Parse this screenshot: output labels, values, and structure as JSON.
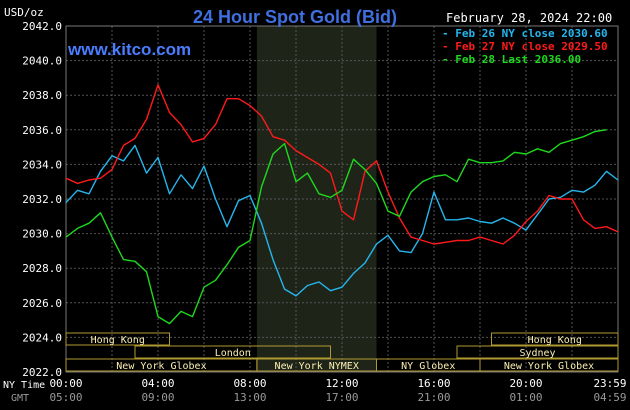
{
  "chart_data": {
    "type": "line",
    "title": "24 Hour Spot Gold (Bid)",
    "watermark": "www.kitco.com",
    "date_label": "February 28, 2024 22:00",
    "unit_label": "USD/oz",
    "ylim": [
      2022,
      2042
    ],
    "y_ticks": [
      "2042.0",
      "2040.0",
      "2038.0",
      "2036.0",
      "2034.0",
      "2032.0",
      "2030.0",
      "2028.0",
      "2026.0",
      "2024.0",
      "2022.0"
    ],
    "y_tick_values": [
      2042,
      2040,
      2038,
      2036,
      2034,
      2032,
      2030,
      2028,
      2026,
      2024,
      2022
    ],
    "xlim": [
      0,
      24
    ],
    "x_tick_hours": [
      0,
      4,
      8,
      12,
      16,
      20,
      24
    ],
    "ny_time_label": "NY Time",
    "gmt_label": "GMT",
    "ny_ticks": [
      "00:00",
      "04:00",
      "08:00",
      "12:00",
      "16:00",
      "20:00",
      "23:59"
    ],
    "gmt_ticks": [
      "05:00",
      "09:00",
      "13:00",
      "17:00",
      "21:00",
      "01:00",
      "04:59"
    ],
    "shaded_hours": [
      8.3,
      13.5
    ],
    "legend_position": "top-right",
    "grid": true,
    "colors": {
      "background": "#000000",
      "grid": "#555555",
      "title": "#3f6fe0",
      "watermark": "#4a7dff",
      "tick_text": "#ffffff",
      "gmt_text": "#9a9a9a",
      "shade": "#1f2419",
      "session_fill": "#fbf0b0",
      "session_border": "#b09a30"
    },
    "series": [
      {
        "name": "Feb 26 NY close 2030.60",
        "color": "#25b6ee",
        "x": [
          0,
          0.5,
          1,
          1.5,
          2,
          2.5,
          3,
          3.5,
          4,
          4.5,
          5,
          5.5,
          6,
          6.5,
          7,
          7.5,
          8,
          8.5,
          9,
          9.5,
          10,
          10.5,
          11,
          11.5,
          12,
          12.5,
          13,
          13.5,
          14,
          14.5,
          15,
          15.5,
          16,
          16.5,
          17,
          17.5,
          18,
          18.5,
          19,
          19.5,
          20,
          20.5,
          21,
          21.5,
          22,
          22.5,
          23,
          23.5,
          24
        ],
        "values": [
          2031.8,
          2032.5,
          2032.3,
          2033.6,
          2034.5,
          2034.2,
          2035.1,
          2033.5,
          2034.4,
          2032.3,
          2033.4,
          2032.6,
          2033.9,
          2032.0,
          2030.4,
          2031.9,
          2032.2,
          2030.6,
          2028.5,
          2026.8,
          2026.4,
          2027.0,
          2027.2,
          2026.7,
          2026.9,
          2027.7,
          2028.3,
          2029.4,
          2029.9,
          2029.0,
          2028.9,
          2030.0,
          2032.4,
          2030.8,
          2030.8,
          2030.9,
          2030.7,
          2030.6,
          2030.9,
          2030.6,
          2030.2,
          2031.1,
          2032.0,
          2032.1,
          2032.5,
          2032.4,
          2032.8,
          2033.6,
          2033.1
        ]
      },
      {
        "name": "Feb 27 NY close 2029.50",
        "color": "#ff1a1a",
        "x": [
          0,
          0.5,
          1,
          1.5,
          2,
          2.5,
          3,
          3.5,
          4,
          4.5,
          5,
          5.5,
          6,
          6.5,
          7,
          7.5,
          8,
          8.5,
          9,
          9.5,
          10,
          10.5,
          11,
          11.5,
          12,
          12.5,
          13,
          13.5,
          14,
          14.5,
          15,
          15.5,
          16,
          16.5,
          17,
          17.5,
          18,
          18.5,
          19,
          19.5,
          20,
          20.5,
          21,
          21.5,
          22,
          22.5,
          23,
          23.5,
          24
        ],
        "values": [
          2033.2,
          2032.9,
          2033.1,
          2033.2,
          2033.7,
          2035.1,
          2035.5,
          2036.6,
          2038.6,
          2037.0,
          2036.3,
          2035.3,
          2035.5,
          2036.3,
          2037.8,
          2037.8,
          2037.4,
          2036.8,
          2035.6,
          2035.4,
          2034.8,
          2034.4,
          2034.0,
          2033.5,
          2031.3,
          2030.8,
          2033.6,
          2034.2,
          2032.4,
          2030.9,
          2029.8,
          2029.6,
          2029.4,
          2029.5,
          2029.6,
          2029.6,
          2029.8,
          2029.6,
          2029.4,
          2029.9,
          2030.7,
          2031.3,
          2032.2,
          2032.0,
          2032.0,
          2030.8,
          2030.3,
          2030.4,
          2030.1
        ]
      },
      {
        "name": "Feb 28 Last 2036.00",
        "color": "#1ed81e",
        "x": [
          0,
          0.5,
          1,
          1.5,
          2,
          2.5,
          3,
          3.5,
          4,
          4.5,
          5,
          5.5,
          6,
          6.5,
          7,
          7.5,
          8,
          8.5,
          9,
          9.5,
          10,
          10.5,
          11,
          11.5,
          12,
          12.5,
          13,
          13.5,
          14,
          14.5,
          15,
          15.5,
          16,
          16.5,
          17,
          17.5,
          18,
          18.5,
          19,
          19.5,
          20,
          20.5,
          21,
          21.5,
          22,
          22.5,
          23,
          23.5
        ],
        "values": [
          2029.8,
          2030.3,
          2030.6,
          2031.2,
          2029.8,
          2028.5,
          2028.4,
          2027.8,
          2025.2,
          2024.8,
          2025.5,
          2025.2,
          2026.9,
          2027.3,
          2028.2,
          2029.2,
          2029.6,
          2032.7,
          2034.6,
          2035.2,
          2033.0,
          2033.5,
          2032.3,
          2032.1,
          2032.5,
          2034.3,
          2033.7,
          2032.9,
          2031.3,
          2031.0,
          2032.4,
          2033.0,
          2033.3,
          2033.4,
          2033.0,
          2034.3,
          2034.1,
          2034.1,
          2034.2,
          2034.7,
          2034.6,
          2034.9,
          2034.7,
          2035.2,
          2035.4,
          2035.6,
          2035.9,
          2036.0
        ]
      }
    ],
    "sessions": [
      {
        "row": 1,
        "name": "Hong Kong",
        "start": 0,
        "end": 4.5
      },
      {
        "row": 1,
        "name": "Hong Kong",
        "start": 18.5,
        "end": 24
      },
      {
        "row": 2,
        "name": "London",
        "start": 3,
        "end": 11.5
      },
      {
        "row": 2,
        "name": "Sydney",
        "start": 17,
        "end": 24
      },
      {
        "row": 3,
        "name": "New York Globex",
        "start": 0,
        "end": 8.3
      },
      {
        "row": 3,
        "name": "New York NYMEX",
        "start": 8.3,
        "end": 13.5
      },
      {
        "row": 3,
        "name": "NY Globex",
        "start": 13.5,
        "end": 18
      },
      {
        "row": 3,
        "name": "New York Globex",
        "start": 18,
        "end": 24
      }
    ]
  }
}
